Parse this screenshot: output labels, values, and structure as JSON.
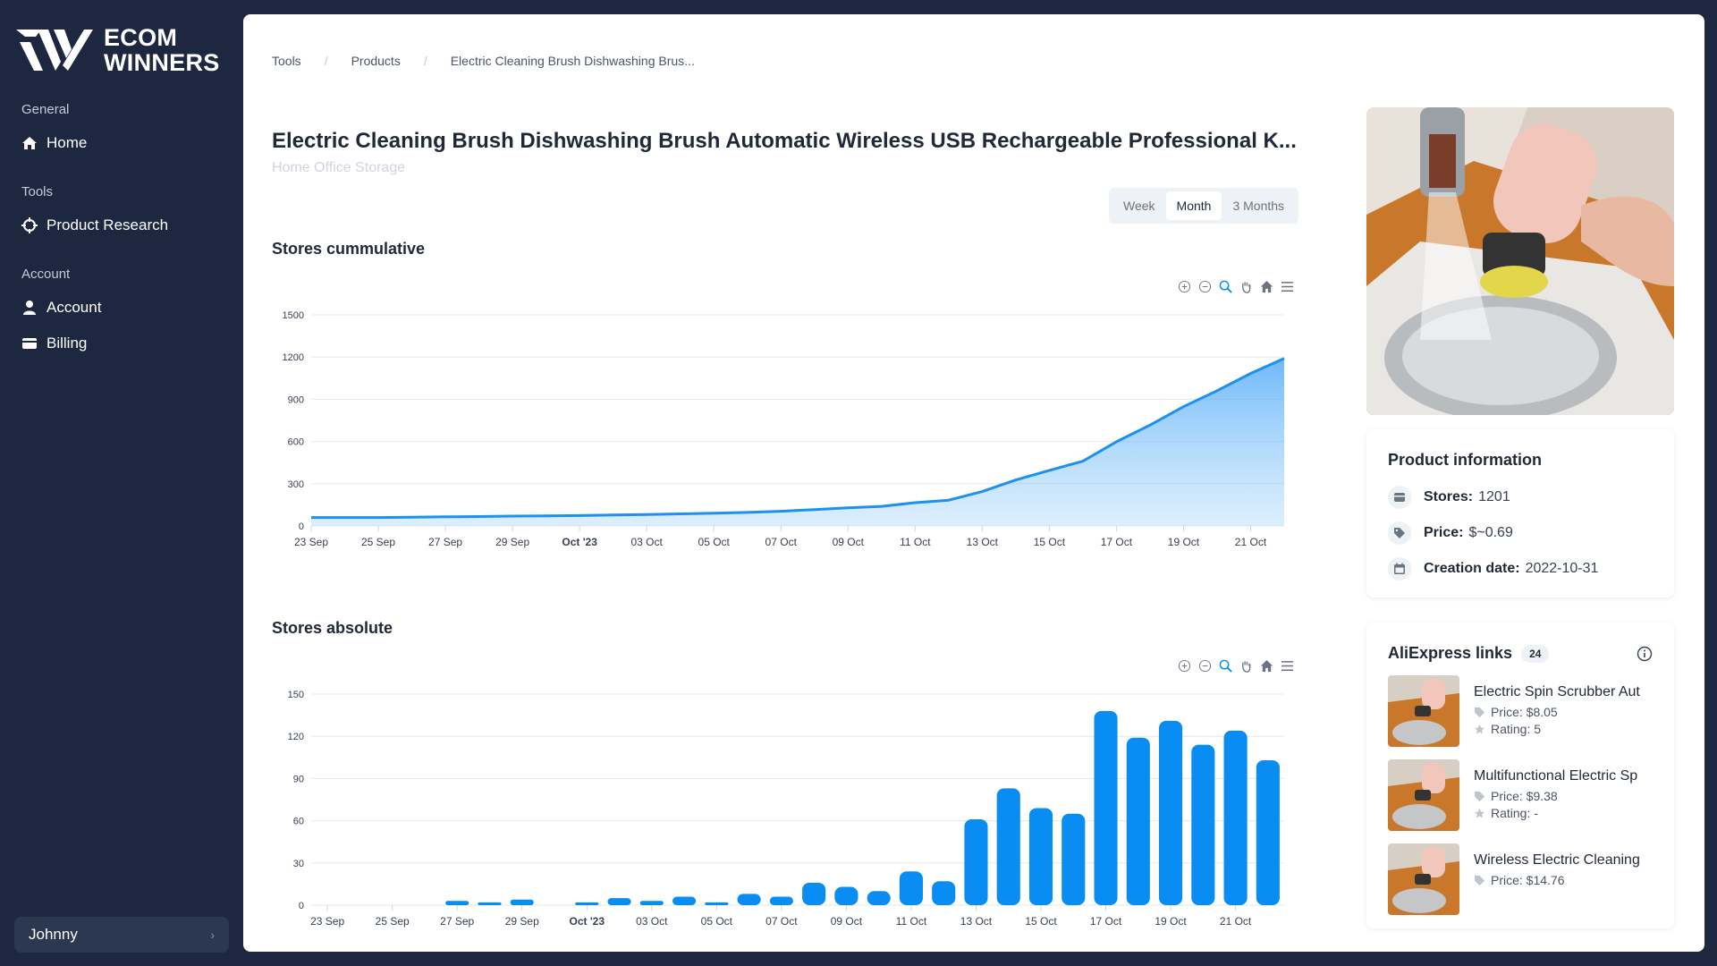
{
  "brand": {
    "line1": "ECOM",
    "line2": "WINNERS"
  },
  "sidebar": {
    "sections": [
      {
        "label": "General",
        "items": [
          {
            "label": "Home",
            "icon": "home-icon"
          }
        ]
      },
      {
        "label": "Tools",
        "items": [
          {
            "label": "Product Research",
            "icon": "crosshair-icon"
          }
        ]
      },
      {
        "label": "Account",
        "items": [
          {
            "label": "Account",
            "icon": "user-icon"
          },
          {
            "label": "Billing",
            "icon": "card-icon"
          }
        ]
      }
    ],
    "user": {
      "name": "Johnny"
    }
  },
  "breadcrumb": [
    "Tools",
    "Products",
    "Electric Cleaning Brush Dishwashing Brus..."
  ],
  "product": {
    "title": "Electric Cleaning Brush Dishwashing Brush Automatic Wireless USB Rechargeable Professional K...",
    "category": "Home Office Storage"
  },
  "range": {
    "options": [
      "Week",
      "Month",
      "3 Months"
    ],
    "selected": "Month"
  },
  "charts": {
    "cumulative_title": "Stores cummulative",
    "absolute_title": "Stores absolute"
  },
  "chart_data": [
    {
      "type": "area",
      "title": "Stores cummulative",
      "ylim": [
        0,
        1500
      ],
      "yticks": [
        0,
        300,
        600,
        900,
        1200,
        1500
      ],
      "xticks": [
        "23 Sep",
        "25 Sep",
        "27 Sep",
        "29 Sep",
        "Oct '23",
        "03 Oct",
        "05 Oct",
        "07 Oct",
        "09 Oct",
        "11 Oct",
        "13 Oct",
        "15 Oct",
        "17 Oct",
        "19 Oct",
        "21 Oct"
      ],
      "x": [
        "23 Sep",
        "24 Sep",
        "25 Sep",
        "26 Sep",
        "27 Sep",
        "28 Sep",
        "29 Sep",
        "30 Sep",
        "01 Oct",
        "02 Oct",
        "03 Oct",
        "04 Oct",
        "05 Oct",
        "06 Oct",
        "07 Oct",
        "08 Oct",
        "09 Oct",
        "10 Oct",
        "11 Oct",
        "12 Oct",
        "13 Oct",
        "14 Oct",
        "15 Oct",
        "16 Oct",
        "17 Oct",
        "18 Oct",
        "19 Oct",
        "20 Oct",
        "21 Oct",
        "22 Oct"
      ],
      "values": [
        60,
        60,
        60,
        62,
        65,
        67,
        70,
        72,
        74,
        78,
        81,
        86,
        90,
        96,
        104,
        116,
        129,
        139,
        165,
        183,
        244,
        327,
        395,
        460,
        598,
        716,
        847,
        961,
        1084,
        1190
      ],
      "grid": true,
      "color": "#1e90f0"
    },
    {
      "type": "bar",
      "title": "Stores absolute",
      "ylim": [
        0,
        150
      ],
      "yticks": [
        0,
        30,
        60,
        90,
        120,
        150
      ],
      "xticks": [
        "23 Sep",
        "25 Sep",
        "27 Sep",
        "29 Sep",
        "Oct '23",
        "03 Oct",
        "05 Oct",
        "07 Oct",
        "09 Oct",
        "11 Oct",
        "13 Oct",
        "15 Oct",
        "17 Oct",
        "19 Oct",
        "21 Oct"
      ],
      "x": [
        "23 Sep",
        "24 Sep",
        "25 Sep",
        "26 Sep",
        "27 Sep",
        "28 Sep",
        "29 Sep",
        "30 Sep",
        "01 Oct",
        "02 Oct",
        "03 Oct",
        "04 Oct",
        "05 Oct",
        "06 Oct",
        "07 Oct",
        "08 Oct",
        "09 Oct",
        "10 Oct",
        "11 Oct",
        "12 Oct",
        "13 Oct",
        "14 Oct",
        "15 Oct",
        "16 Oct",
        "17 Oct",
        "18 Oct",
        "19 Oct",
        "20 Oct",
        "21 Oct",
        "22 Oct"
      ],
      "values": [
        0,
        0,
        0,
        0,
        3,
        2,
        4,
        0,
        2,
        5,
        3,
        6,
        2,
        8,
        6,
        16,
        13,
        10,
        24,
        17,
        61,
        83,
        69,
        65,
        138,
        119,
        131,
        114,
        124,
        103
      ],
      "grid": true,
      "color": "#0a8df2"
    }
  ],
  "product_info": {
    "title": "Product information",
    "rows": [
      {
        "label": "Stores:",
        "value": "1201",
        "icon": "store-icon"
      },
      {
        "label": "Price:",
        "value": "$~0.69",
        "icon": "tag-icon"
      },
      {
        "label": "Creation date:",
        "value": "2022-10-31",
        "icon": "calendar-icon"
      }
    ]
  },
  "aliexpress": {
    "title": "AliExpress links",
    "count": "24",
    "items": [
      {
        "name": "Electric Spin Scrubber Aut",
        "price": "Price: $8.05",
        "rating": "Rating: 5"
      },
      {
        "name": "Multifunctional Electric Sp",
        "price": "Price: $9.38",
        "rating": "Rating: -"
      },
      {
        "name": "Wireless Electric Cleaning",
        "price": "Price: $14.76",
        "rating": ""
      }
    ]
  }
}
